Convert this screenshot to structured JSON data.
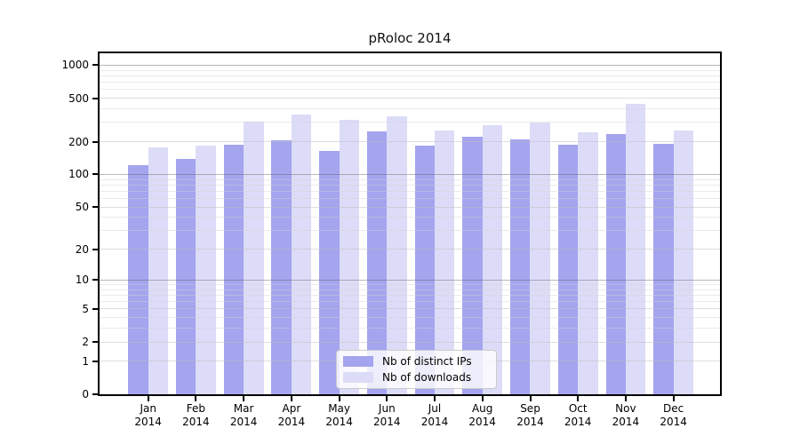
{
  "title": "pRoloc 2014",
  "chart_data": {
    "type": "bar",
    "title": "pRoloc 2014",
    "categories": [
      "Jan 2014",
      "Feb 2014",
      "Mar 2014",
      "Apr 2014",
      "May 2014",
      "Jun 2014",
      "Jul 2014",
      "Aug 2014",
      "Sep 2014",
      "Oct 2014",
      "Nov 2014",
      "Dec 2014"
    ],
    "series": [
      {
        "name": "Nb of distinct IPs",
        "color": "#a4a4ef",
        "values": [
          122,
          140,
          186,
          207,
          164,
          247,
          183,
          221,
          208,
          186,
          234,
          192
        ]
      },
      {
        "name": "Nb of downloads",
        "color": "#dcdcf8",
        "values": [
          178,
          183,
          306,
          352,
          316,
          341,
          251,
          283,
          297,
          242,
          445,
          251
        ]
      }
    ],
    "yscale": "log1p",
    "y_ticks": [
      0,
      1,
      2,
      5,
      10,
      20,
      50,
      100,
      200,
      500,
      1000
    ],
    "y_minor_gridlines": [
      3,
      4,
      6,
      7,
      8,
      9,
      30,
      40,
      60,
      70,
      80,
      90,
      300,
      400,
      600,
      700,
      800,
      900
    ],
    "y_decade_values": [
      10,
      100,
      1000
    ],
    "ylim": [
      0,
      1285
    ],
    "xlabel": "",
    "ylabel": "",
    "grid": "horizontal",
    "legend_position": "lower-center-inside"
  },
  "legend": {
    "items": [
      {
        "label": "Nb of distinct IPs",
        "color": "#a4a4ef"
      },
      {
        "label": "Nb of downloads",
        "color": "#dcdcf8"
      }
    ]
  },
  "colors": {
    "bar_distinct_ips": "#a4a4ef",
    "bar_downloads": "#dcdcf8",
    "axis": "#000000",
    "background": "#ffffff",
    "legend_border": "#cccccc"
  }
}
